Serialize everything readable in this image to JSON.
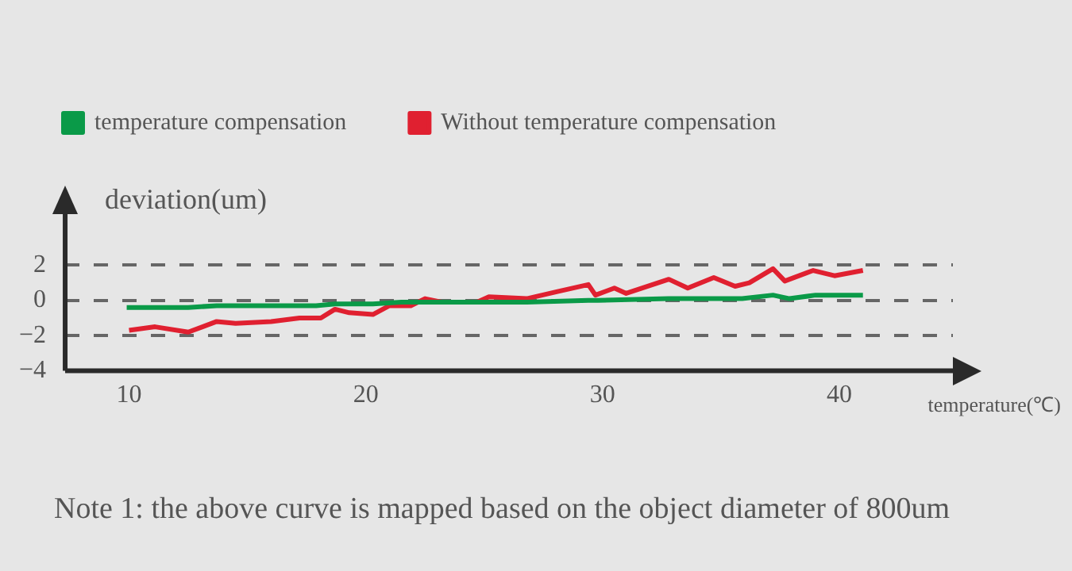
{
  "chart_data": {
    "type": "line",
    "xlabel": "temperature(℃)",
    "ylabel": "deviation(um)",
    "annotations": [
      "Note 1: the above curve is mapped based on the object diameter of 800um"
    ],
    "xlim": [
      7.3,
      44.8
    ],
    "xticks": [
      10,
      20,
      30,
      40
    ],
    "ylim": [
      -4,
      4.9
    ],
    "yticks": [
      -4,
      -2,
      0,
      2
    ],
    "grid": "y",
    "legend": "top",
    "line_style": "solid",
    "marker": "none",
    "series": [
      {
        "name": "temperature compensation",
        "color": "#0a9a48",
        "x": [
          9.9,
          11.3,
          12.5,
          13.7,
          17.9,
          18.7,
          20.3,
          21.5,
          23.8,
          26.8,
          29.4,
          29.8,
          32.8,
          33.4,
          34.7,
          35.9,
          37.2,
          37.9,
          39,
          41
        ],
        "values": [
          -0.4,
          -0.4,
          -0.4,
          -0.3,
          -0.3,
          -0.2,
          -0.2,
          -0.1,
          -0.1,
          -0.1,
          0,
          0,
          0.1,
          0.1,
          0.1,
          0.1,
          0.3,
          0.1,
          0.3,
          0.3
        ]
      },
      {
        "name": "Without temperature compensation",
        "color": "#e02030",
        "x": [
          10,
          11.1,
          12.5,
          13.7,
          14.5,
          16,
          17.2,
          18.1,
          18.7,
          19.3,
          20.3,
          21,
          21.9,
          22.5,
          23.2,
          24.7,
          25.2,
          26.8,
          28.1,
          29.4,
          29.7,
          30.5,
          31,
          32.8,
          33.6,
          34.7,
          35.6,
          36.2,
          37.2,
          37.7,
          38.9,
          39.8,
          41
        ],
        "values": [
          -1.7,
          -1.5,
          -1.8,
          -1.2,
          -1.3,
          -1.2,
          -1,
          -1,
          -0.5,
          -0.7,
          -0.8,
          -0.3,
          -0.3,
          0.1,
          -0.1,
          -0.1,
          0.2,
          0.1,
          0.5,
          0.9,
          0.3,
          0.7,
          0.4,
          1.2,
          0.7,
          1.3,
          0.8,
          1,
          1.8,
          1.1,
          1.7,
          1.4,
          1.7
        ]
      }
    ]
  }
}
